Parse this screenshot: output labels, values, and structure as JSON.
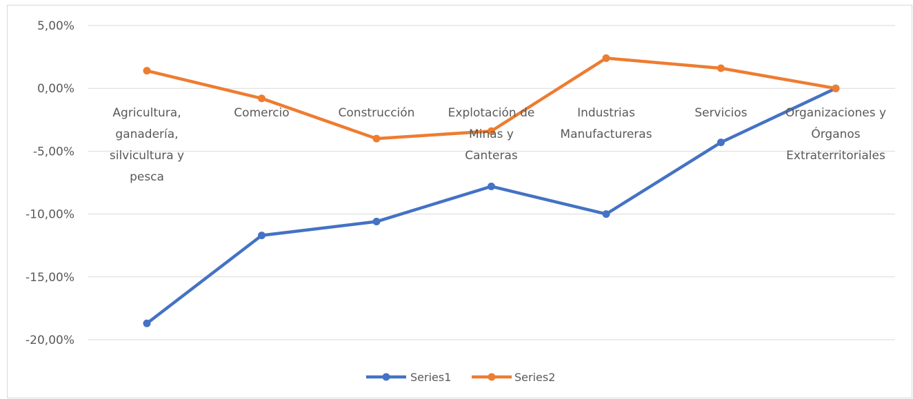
{
  "chart_data": {
    "type": "line",
    "categories": [
      [
        "Agricultura,",
        "ganadería,",
        "silvicultura y",
        "pesca"
      ],
      [
        "Comercio"
      ],
      [
        "Construcción"
      ],
      [
        "Explotación de",
        "Minas y",
        "Canteras"
      ],
      [
        "Industrias",
        "Manufactureras"
      ],
      [
        "Servicios"
      ],
      [
        "Organizaciones y",
        "Órganos",
        "Extraterritoriales"
      ]
    ],
    "series": [
      {
        "name": "Series1",
        "color": "#4472C4",
        "values": [
          -18.7,
          -11.7,
          -10.6,
          -7.8,
          -10.0,
          -4.3,
          0.0
        ]
      },
      {
        "name": "Series2",
        "color": "#ED7D31",
        "values": [
          1.4,
          -0.8,
          -4.0,
          -3.4,
          2.4,
          1.6,
          0.0
        ]
      }
    ],
    "y_ticks": [
      "5,00%",
      "0,00%",
      "-5,00%",
      "-10,00%",
      "-15,00%",
      "-20,00%"
    ],
    "ylim": [
      -20,
      5
    ],
    "grid": true,
    "gridline_color": "#d9d9d9",
    "legend": "bottom",
    "title": "",
    "xlabel": "",
    "ylabel": ""
  }
}
